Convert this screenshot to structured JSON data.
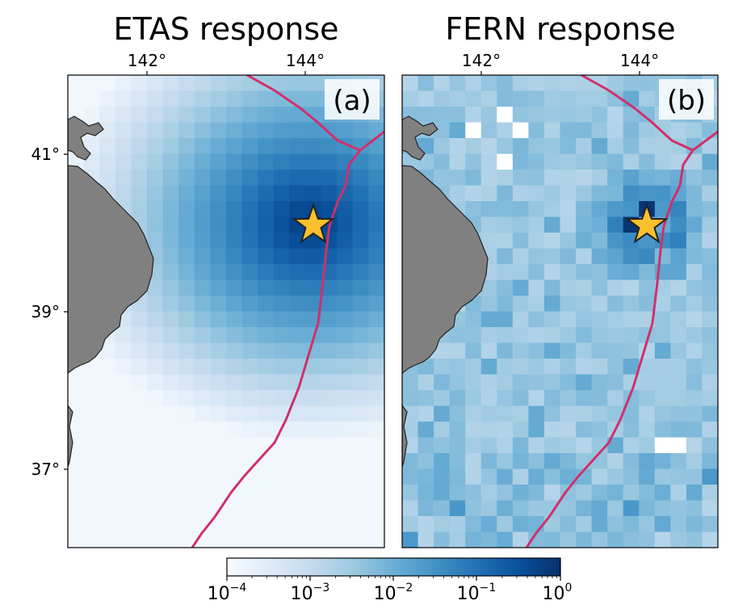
{
  "panels": [
    {
      "id": "a",
      "title": "ETAS response",
      "label": "(a)",
      "lon_ticks": [
        "142°",
        "144°"
      ],
      "lat_ticks": [
        "41°",
        "39°",
        "37°"
      ],
      "field": "smooth",
      "white_cells": []
    },
    {
      "id": "b",
      "title": "FERN response",
      "label": "(b)",
      "lon_ticks": [
        "142°",
        "144°"
      ],
      "field": "noisy",
      "white_cells": [
        [
          5,
          6
        ],
        [
          3,
          7
        ],
        [
          3,
          4
        ],
        [
          2,
          6
        ],
        [
          23,
          16
        ],
        [
          23,
          17
        ]
      ]
    }
  ],
  "map": {
    "lon_range": [
      141,
      145
    ],
    "lat_range": [
      36,
      42
    ],
    "epicenter": {
      "lon": 144.05,
      "lat": 40.12
    },
    "colors": {
      "land": "#808080",
      "coast": "#222222",
      "plate_boundary": "#d0306a",
      "star": "#fbc02d",
      "label_box": "#ffffff"
    }
  },
  "colorbar": {
    "scale": "log",
    "range": [
      0.0001,
      1
    ],
    "ticks": [
      {
        "base": "10",
        "exp": "−4"
      },
      {
        "base": "10",
        "exp": "−3"
      },
      {
        "base": "10",
        "exp": "−2"
      },
      {
        "base": "10",
        "exp": "−1"
      },
      {
        "base": "10",
        "exp": "0"
      }
    ],
    "colormap": "Blues"
  }
}
